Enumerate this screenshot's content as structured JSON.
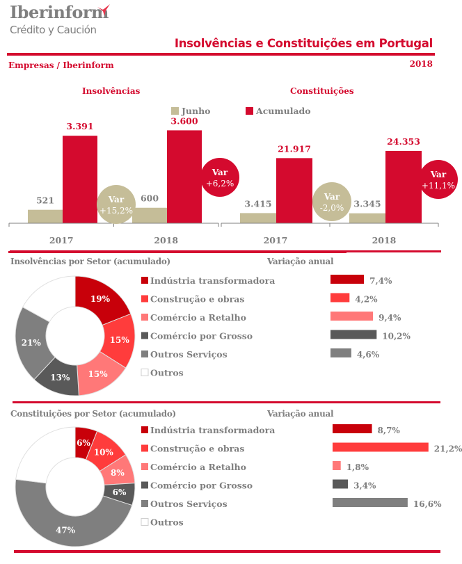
{
  "header": {
    "logo_main": "Iberinform",
    "logo_sub": "Crédito y Caución",
    "title": "Insolvências e Constituições em Portugal",
    "subtitle": "Empresas / Iberinform",
    "year": "2018"
  },
  "colors": {
    "brand_red": "#d40a2e",
    "junho": "#c5bd98",
    "acumulado": "#d40a2e",
    "axis": "#7f7f7f",
    "text_gray": "#7f7f7f"
  },
  "legend": {
    "junho": "Junho",
    "acumulado": "Acumulado"
  },
  "chart_data": [
    {
      "type": "bar",
      "title": "Insolvências",
      "categories": [
        "2017",
        "2018"
      ],
      "series": [
        {
          "name": "Junho",
          "values": [
            521,
            600
          ],
          "labels": [
            "521",
            "600"
          ]
        },
        {
          "name": "Acumulado",
          "values": [
            3391,
            3600
          ],
          "labels": [
            "3.391",
            "3.600"
          ]
        }
      ],
      "annotations": [
        {
          "series": "Junho",
          "text_line1": "Var",
          "text_line2": "+15,2%"
        },
        {
          "series": "Acumulado",
          "text_line1": "Var",
          "text_line2": "+6,2%"
        }
      ],
      "ylim": [
        0,
        3800
      ]
    },
    {
      "type": "bar",
      "title": "Constituições",
      "categories": [
        "2017",
        "2018"
      ],
      "series": [
        {
          "name": "Junho",
          "values": [
            3415,
            3345
          ],
          "labels": [
            "3.415",
            "3.345"
          ]
        },
        {
          "name": "Acumulado",
          "values": [
            21917,
            24353
          ],
          "labels": [
            "21.917",
            "24.353"
          ]
        }
      ],
      "annotations": [
        {
          "series": "Junho",
          "text_line1": "Var",
          "text_line2": "-2,0%"
        },
        {
          "series": "Acumulado",
          "text_line1": "Var",
          "text_line2": "+11,1%"
        }
      ],
      "ylim": [
        0,
        33000
      ]
    },
    {
      "type": "pie",
      "title": "Insolvências por Setor (acumulado)",
      "categories": [
        "Indústria transformadora",
        "Construção e obras",
        "Comércio a Retalho",
        "Comércio por Grosso",
        "Outros Serviços",
        "Outros"
      ],
      "values": [
        19,
        15,
        15,
        13,
        21,
        17
      ],
      "labels": [
        "19%",
        "15%",
        "15%",
        "13%",
        "21%",
        ""
      ],
      "colors": [
        "#c8000a",
        "#ff3c3c",
        "#ff7878",
        "#595959",
        "#7f7f7f",
        "#ffffff"
      ],
      "variation_title": "Variação anual",
      "variation_values": [
        7.4,
        4.2,
        9.4,
        10.2,
        4.6
      ],
      "variation_labels": [
        "7,4%",
        "4,2%",
        "9,4%",
        "10,2%",
        "4,6%"
      ]
    },
    {
      "type": "pie",
      "title": "Constituições por Setor (acumulado)",
      "categories": [
        "Indústria transformadora",
        "Construção e obras",
        "Comércio a Retalho",
        "Comércio por Grosso",
        "Outros Serviços",
        "Outros"
      ],
      "values": [
        6,
        10,
        8,
        6,
        47,
        23
      ],
      "labels": [
        "6%",
        "10%",
        "8%",
        "6%",
        "47%",
        ""
      ],
      "colors": [
        "#c8000a",
        "#ff3c3c",
        "#ff7878",
        "#595959",
        "#7f7f7f",
        "#ffffff"
      ],
      "variation_title": "Variação anual",
      "variation_values": [
        8.7,
        21.2,
        1.8,
        3.4,
        16.6
      ],
      "variation_labels": [
        "8,7%",
        "21,2%",
        "1,8%",
        "3,4%",
        "16,6%"
      ]
    }
  ]
}
